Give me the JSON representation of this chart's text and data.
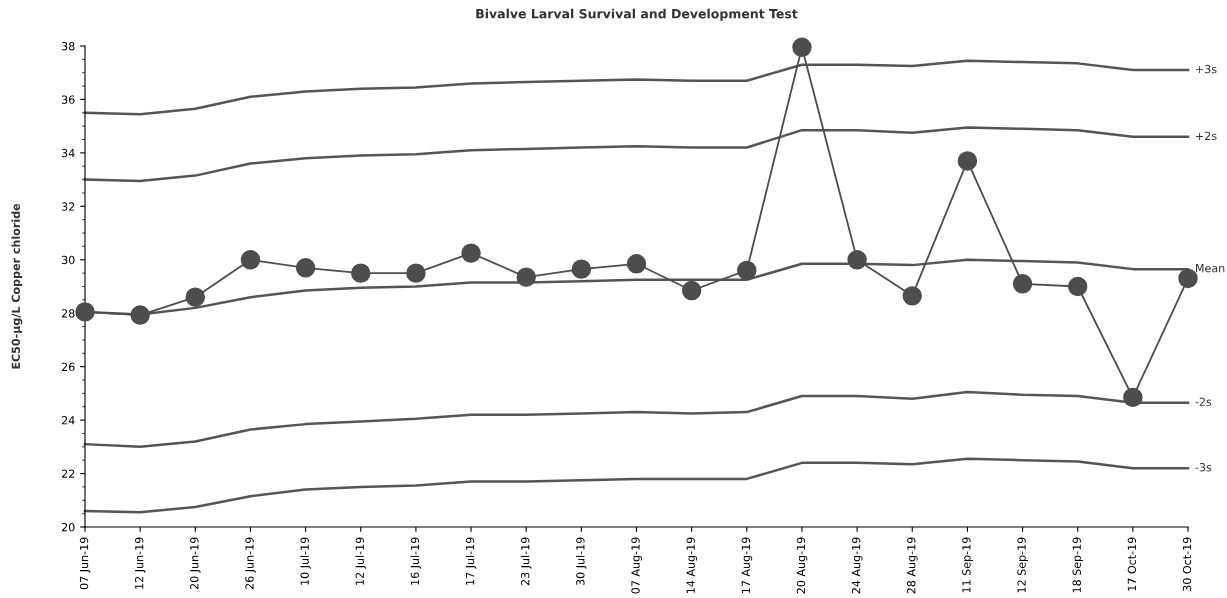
{
  "chart_data": {
    "type": "line",
    "title": "Bivalve Larval Survival and Development Test",
    "ylabel": "EC50-µg/L Copper chloride",
    "categories": [
      "07 Jun-19",
      "12 Jun-19",
      "20 Jun-19",
      "26 Jun-19",
      "10 Jul-19",
      "12 Jul-19",
      "16 Jul-19",
      "17 Jul-19",
      "23 Jul-19",
      "30 Jul-19",
      "07 Aug-19",
      "14 Aug-19",
      "17 Aug-19",
      "20 Aug-19",
      "24 Aug-19",
      "28 Aug-19",
      "11 Sep-19",
      "12 Sep-19",
      "18 Sep-19",
      "17 Oct-19",
      "30 Oct-19"
    ],
    "series": [
      {
        "name": "+3s",
        "color": "#555555",
        "marker": "none",
        "values": [
          35.5,
          35.45,
          35.65,
          36.1,
          36.3,
          36.4,
          36.45,
          36.6,
          36.65,
          36.7,
          36.75,
          36.7,
          36.7,
          37.3,
          37.3,
          37.25,
          37.45,
          37.4,
          37.35,
          37.1,
          37.1
        ]
      },
      {
        "name": "+2s",
        "color": "#555555",
        "marker": "none",
        "values": [
          33.0,
          32.95,
          33.15,
          33.6,
          33.8,
          33.9,
          33.95,
          34.1,
          34.15,
          34.2,
          34.25,
          34.2,
          34.2,
          34.85,
          34.85,
          34.75,
          34.95,
          34.9,
          34.85,
          34.6,
          34.6
        ]
      },
      {
        "name": "Mean",
        "color": "#555555",
        "marker": "none",
        "values": [
          28.05,
          27.95,
          28.2,
          28.6,
          28.85,
          28.95,
          29.0,
          29.15,
          29.15,
          29.2,
          29.25,
          29.25,
          29.25,
          29.85,
          29.85,
          29.8,
          30.0,
          29.95,
          29.9,
          29.65,
          29.65
        ]
      },
      {
        "name": "-2s",
        "color": "#555555",
        "marker": "none",
        "values": [
          23.1,
          23.0,
          23.2,
          23.65,
          23.85,
          23.95,
          24.05,
          24.2,
          24.2,
          24.25,
          24.3,
          24.25,
          24.3,
          24.9,
          24.9,
          24.8,
          25.05,
          24.95,
          24.9,
          24.65,
          24.65
        ]
      },
      {
        "name": "-3s",
        "color": "#555555",
        "marker": "none",
        "values": [
          20.6,
          20.55,
          20.75,
          21.15,
          21.4,
          21.5,
          21.55,
          21.7,
          21.7,
          21.75,
          21.8,
          21.8,
          21.8,
          22.4,
          22.4,
          22.35,
          22.55,
          22.5,
          22.45,
          22.2,
          22.2
        ]
      },
      {
        "color": "#4d4d4d",
        "marker": "circle",
        "values": [
          28.05,
          27.93,
          28.6,
          30.0,
          29.7,
          29.5,
          29.5,
          30.25,
          29.35,
          29.65,
          29.85,
          28.85,
          29.6,
          37.95,
          30.0,
          28.65,
          33.7,
          29.1,
          29.0,
          24.85,
          29.3
        ]
      }
    ],
    "ylim": [
      20,
      38
    ],
    "yticks": [
      20,
      22,
      24,
      26,
      28,
      30,
      32,
      34,
      36,
      38
    ],
    "grid": false,
    "legend": false
  }
}
